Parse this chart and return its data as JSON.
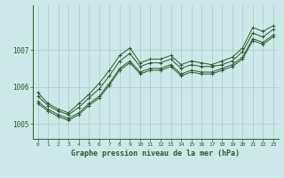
{
  "title": "Graphe pression niveau de la mer (hPa)",
  "background_color": "#cce8e8",
  "line_color": "#2d5a2d",
  "grid_color": "#b0c8c8",
  "xlim": [
    -0.5,
    23.5
  ],
  "ylim": [
    1004.6,
    1008.2
  ],
  "yticks": [
    1005,
    1006,
    1007
  ],
  "xticks": [
    0,
    1,
    2,
    3,
    4,
    5,
    6,
    7,
    8,
    9,
    10,
    11,
    12,
    13,
    14,
    15,
    16,
    17,
    18,
    19,
    20,
    21,
    22,
    23
  ],
  "series": [
    [
      1005.75,
      1005.5,
      1005.35,
      1005.25,
      1005.45,
      1005.7,
      1005.95,
      1006.3,
      1006.7,
      1006.9,
      1006.55,
      1006.65,
      1006.65,
      1006.75,
      1006.5,
      1006.6,
      1006.55,
      1006.55,
      1006.6,
      1006.7,
      1006.95,
      1007.45,
      1007.35,
      1007.55
    ],
    [
      1005.6,
      1005.4,
      1005.25,
      1005.15,
      1005.3,
      1005.55,
      1005.75,
      1006.1,
      1006.5,
      1006.7,
      1006.4,
      1006.5,
      1006.5,
      1006.6,
      1006.35,
      1006.45,
      1006.4,
      1006.4,
      1006.5,
      1006.6,
      1006.8,
      1007.3,
      1007.2,
      1007.4
    ],
    [
      1005.55,
      1005.35,
      1005.2,
      1005.1,
      1005.25,
      1005.5,
      1005.7,
      1006.05,
      1006.45,
      1006.65,
      1006.35,
      1006.45,
      1006.45,
      1006.55,
      1006.3,
      1006.4,
      1006.35,
      1006.35,
      1006.45,
      1006.55,
      1006.75,
      1007.25,
      1007.15,
      1007.35
    ],
    [
      1005.85,
      1005.55,
      1005.4,
      1005.3,
      1005.55,
      1005.8,
      1006.1,
      1006.45,
      1006.85,
      1007.05,
      1006.65,
      1006.75,
      1006.75,
      1006.85,
      1006.6,
      1006.7,
      1006.65,
      1006.6,
      1006.7,
      1006.8,
      1007.05,
      1007.6,
      1007.5,
      1007.65
    ]
  ]
}
